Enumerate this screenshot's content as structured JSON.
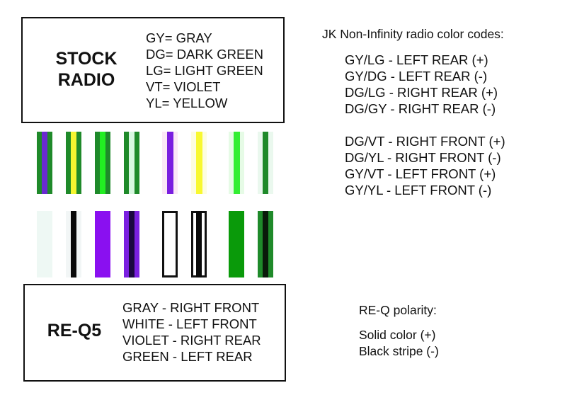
{
  "stock_radio": {
    "title_line1": "STOCK",
    "title_line2": "RADIO",
    "legend": [
      "GY= GRAY",
      "DG= DARK GREEN",
      "LG= LIGHT GREEN",
      "VT= VIOLET",
      "YL= YELLOW"
    ]
  },
  "jk_codes": {
    "heading": "JK Non-Infinity radio color codes:",
    "rear": [
      "GY/LG - LEFT REAR (+)",
      "GY/DG - LEFT REAR (-)",
      "DG/LG - RIGHT REAR (+)",
      "DG/GY - RIGHT REAR (-)"
    ],
    "front": [
      "DG/VT - RIGHT FRONT (+)",
      "DG/YL - RIGHT FRONT (-)",
      "GY/VT - LEFT FRONT (+)",
      "GY/YL - LEFT FRONT (-)"
    ]
  },
  "req5": {
    "title": "RE-Q5",
    "legend": [
      "GRAY - RIGHT FRONT",
      "WHITE - LEFT FRONT",
      "VIOLET - RIGHT REAR",
      "GREEN - LEFT REAR"
    ]
  },
  "polarity": {
    "heading": "RE-Q polarity:",
    "lines": [
      "Solid color (+)",
      "Black stripe (-)"
    ]
  },
  "wires_top": [
    {
      "base": "#1f8a2a",
      "stripe": "#6a2ad0"
    },
    {
      "base": "#1f8a2a",
      "stripe": "#f5f530"
    },
    {
      "base": "#1f8a2a",
      "stripe": "#22ee22"
    },
    {
      "base": "#1f8a2a",
      "stripe": "#d8f8e0"
    },
    {
      "base": "#fbe8f6",
      "stripe": "#7a1ee0",
      "thin": true
    },
    {
      "base": "#fdfde0",
      "stripe": "#f8f830",
      "thin": true
    },
    {
      "base": "#e6fbe6",
      "stripe": "#33ee33",
      "thin": true
    },
    {
      "base": "#eaf8ee",
      "stripe": "#1f8a2a"
    }
  ],
  "wires_bottom": [
    {
      "base": "#eef8f4",
      "stripe": ""
    },
    {
      "base": "#f2f6f6",
      "stripe": "#0a0a0a"
    },
    {
      "base": "#8a10f0",
      "stripe": ""
    },
    {
      "base": "#7a20e0",
      "stripe": "#1a0840"
    },
    {
      "base": "#ffffff",
      "stripe": "",
      "outline": "#111111"
    },
    {
      "base": "#ffffff",
      "stripe": "#0a0a0a",
      "outline": "#111111"
    },
    {
      "base": "#0a9a0a",
      "stripe": ""
    },
    {
      "base": "#1f8a2a",
      "stripe": "#0a1a0a"
    }
  ]
}
